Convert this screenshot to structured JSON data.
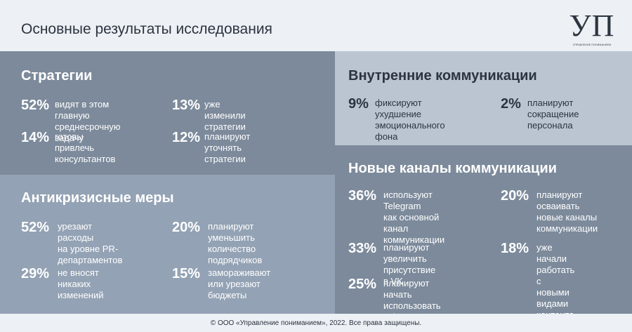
{
  "header": {
    "title": "Основные результаты исследования",
    "logo_mark": "УП",
    "logo_caption": "УПРАВЛЕНИЕ ПОНИМАНИЕМ"
  },
  "strategies": {
    "title": "Стратегии",
    "items": [
      {
        "pct": "52%",
        "text": "видят в этом главную\nсреднесрочную задачу"
      },
      {
        "pct": "13%",
        "text": "уже изменили стратегии"
      },
      {
        "pct": "14%",
        "text": "готовы привлечь\nконсультантов"
      },
      {
        "pct": "12%",
        "text": "планируют уточнять\nстратегии"
      }
    ]
  },
  "anticrisis": {
    "title": "Антикризисные меры",
    "items": [
      {
        "pct": "52%",
        "text": "урезают расходы\nна уровне PR-\nдепартаментов"
      },
      {
        "pct": "20%",
        "text": "планируют уменьшить\nколичество подрядчиков"
      },
      {
        "pct": "29%",
        "text": "не вносят никаких\nизменений"
      },
      {
        "pct": "15%",
        "text": "замораживают\nили урезают бюджеты"
      }
    ]
  },
  "internal": {
    "title": "Внутренние коммуникации",
    "items": [
      {
        "pct": "9%",
        "text": "фиксируют ухудшение\nэмоционального фона"
      },
      {
        "pct": "2%",
        "text": "планируют\nсокращение\nперсонала"
      }
    ]
  },
  "channels": {
    "title": "Новые каналы коммуникации",
    "items": [
      {
        "pct": "36%",
        "text": "используют Telegram\nкак основной канал\nкоммуникации"
      },
      {
        "pct": "20%",
        "text": "планируют\nосваивать\nновые каналы\nкоммуникации"
      },
      {
        "pct": "33%",
        "text": "планируют увеличить\nприсутствие в VK"
      },
      {
        "pct": "18%",
        "text": "уже начали\nработать\nс новыми видами\nконтента"
      },
      {
        "pct": "25%",
        "text": "планируют начать\nиспользовать Telegram"
      }
    ]
  },
  "footer": {
    "copyright": "© ООО «Управление пониманием», 2022. Все права защищены."
  }
}
